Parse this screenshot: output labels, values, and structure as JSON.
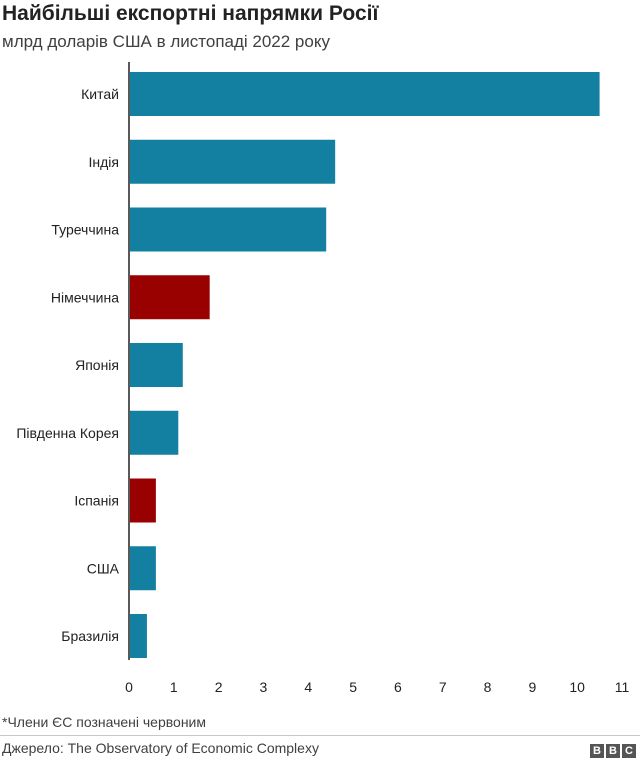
{
  "chart_data": {
    "type": "bar",
    "orientation": "horizontal",
    "title": "Найбільші експортні напрямки Росії",
    "subtitle": "млрд доларів США в листопаді 2022 року",
    "categories": [
      "Китай",
      "Індія",
      "Туреччина",
      "Німеччина",
      "Японія",
      "Південна Корея",
      "Іспанія",
      "США",
      "Бразилія"
    ],
    "values": [
      10.5,
      4.6,
      4.4,
      1.8,
      1.2,
      1.1,
      0.6,
      0.6,
      0.4
    ],
    "eu_member": [
      false,
      false,
      false,
      true,
      false,
      false,
      true,
      false,
      false
    ],
    "xlim": [
      0,
      11
    ],
    "xticks": [
      0,
      1,
      2,
      3,
      4,
      5,
      6,
      7,
      8,
      9,
      10,
      11
    ],
    "grid": false,
    "colors": {
      "default": "#1380A1",
      "eu": "#990000"
    }
  },
  "footnote": "*Члени ЄС позначені червоним",
  "source": "Джерело: The Observatory of Economic Complexy",
  "logo": [
    "B",
    "B",
    "C"
  ]
}
